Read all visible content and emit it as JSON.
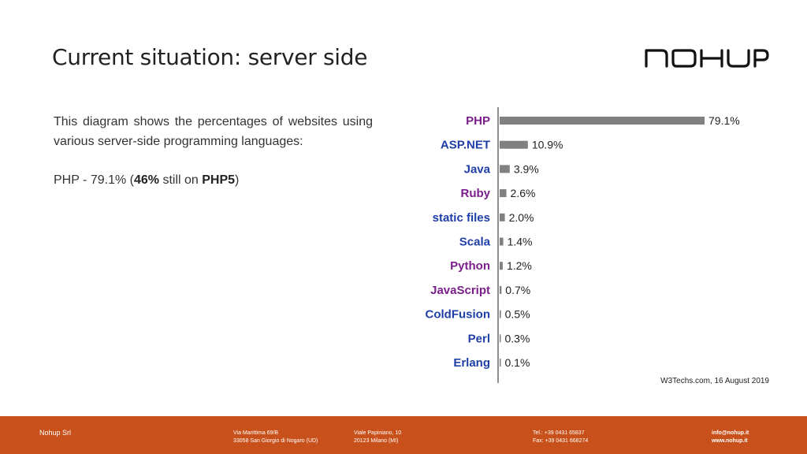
{
  "title": "Current situation: server side",
  "logo_text": "NOHUP",
  "body": {
    "para1": "This diagram shows the percentages of websites using various server-side programming languages:",
    "para2_prefix": "PHP - 79.1% (",
    "para2_bold1": "46%",
    "para2_mid": " still on ",
    "para2_bold2": "PHP5",
    "para2_suffix": ")"
  },
  "chart_data": {
    "type": "bar",
    "orientation": "horizontal",
    "categories": [
      "PHP",
      "ASP.NET",
      "Java",
      "Ruby",
      "static files",
      "Scala",
      "Python",
      "JavaScript",
      "ColdFusion",
      "Perl",
      "Erlang"
    ],
    "values": [
      79.1,
      10.9,
      3.9,
      2.6,
      2.0,
      1.4,
      1.2,
      0.7,
      0.5,
      0.3,
      0.1
    ],
    "value_labels": [
      "79.1%",
      "10.9%",
      "3.9%",
      "2.6%",
      "2.0%",
      "1.4%",
      "1.2%",
      "0.7%",
      "0.5%",
      "0.3%",
      "0.1%"
    ],
    "label_colors": [
      "#7a1f8a",
      "#1f3fa8",
      "#1f3fa8",
      "#7a1f8a",
      "#1f3fa8",
      "#1f3fa8",
      "#7a1f8a",
      "#7a1f8a",
      "#1f3fa8",
      "#1f3fa8",
      "#1f3fa8"
    ],
    "bar_color": "#808080",
    "xlim": [
      0,
      79.1
    ],
    "source": "W3Techs.com, 16 August 2019"
  },
  "footer": {
    "company": "Nohup Srl",
    "addr1_line1": "Via Marittima 69/B",
    "addr1_line2": "33058 San Giorgio di Nogaro (UD)",
    "addr2_line1": "Viale Papiniano, 10",
    "addr2_line2": "20123 Milano (MI)",
    "tel": "Tel.: +39 0431 65837",
    "fax": "Fax: +39 0431 668274",
    "email": "info@nohup.it",
    "web": "www.nohup.it"
  },
  "colors": {
    "footer_bg": "#c8501a"
  }
}
